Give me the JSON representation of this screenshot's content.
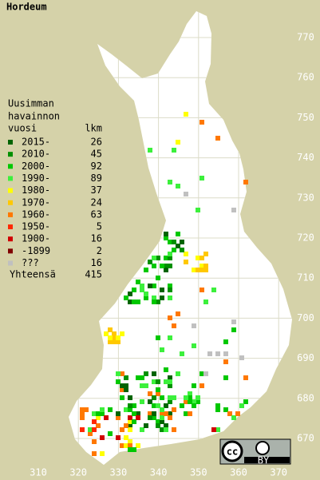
{
  "title": "Hordeum",
  "legend": {
    "heading": [
      "Uusimman",
      "havainnon",
      "vuosi"
    ],
    "count_heading": "lkm",
    "rows": [
      {
        "label": "2015-",
        "count": 26,
        "color": "#006400"
      },
      {
        "label": "2010-",
        "count": 45,
        "color": "#009000"
      },
      {
        "label": "2000-",
        "count": 92,
        "color": "#00c800"
      },
      {
        "label": "1990-",
        "count": 89,
        "color": "#3cf03c"
      },
      {
        "label": "1980-",
        "count": 37,
        "color": "#ffff00"
      },
      {
        "label": "1970-",
        "count": 24,
        "color": "#ffc800"
      },
      {
        "label": "1960-",
        "count": 63,
        "color": "#ff7800"
      },
      {
        "label": "1950-",
        "count": 5,
        "color": "#ff2800"
      },
      {
        "label": "1900-",
        "count": 16,
        "color": "#d00000"
      },
      {
        "label": "-1899",
        "count": 2,
        "color": "#800000"
      },
      {
        "label": "???",
        "count": 16,
        "color": "#c0c0c0"
      }
    ],
    "total_label": "Yhteensä",
    "total": 415
  },
  "x_axis": [
    310,
    320,
    330,
    340,
    350,
    360,
    370
  ],
  "y_axis": [
    670,
    680,
    690,
    700,
    710,
    720,
    730,
    740,
    750,
    760,
    770
  ],
  "license": {
    "cc": "cc",
    "by": "BY"
  }
}
